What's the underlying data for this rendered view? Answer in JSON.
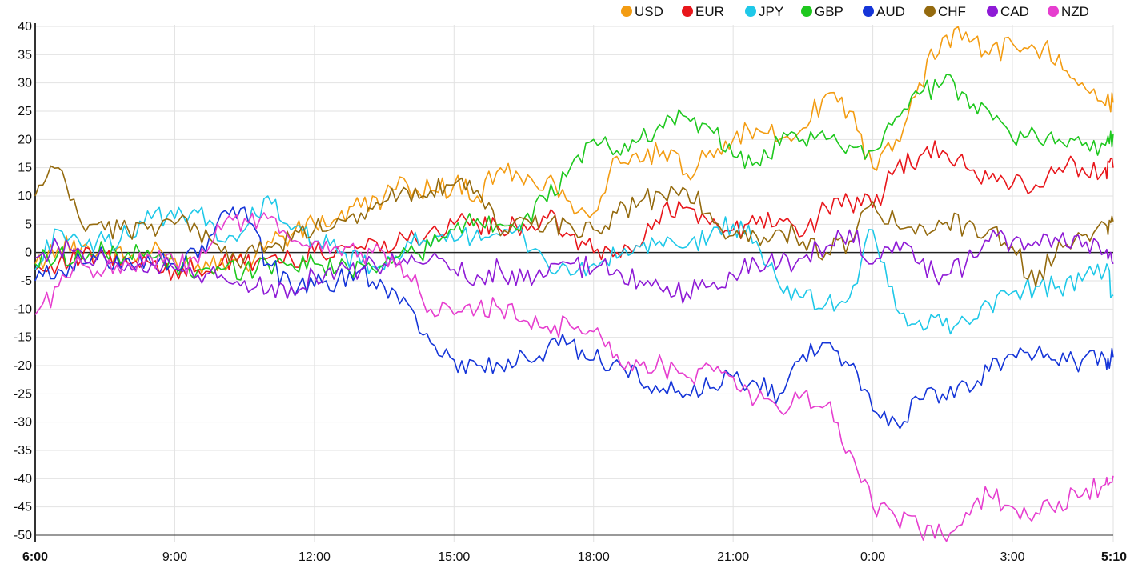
{
  "chart_data": {
    "type": "line",
    "ylim": [
      -50,
      40
    ],
    "yticks": [
      40,
      35,
      30,
      25,
      20,
      15,
      10,
      5,
      0,
      -5,
      -10,
      -15,
      -20,
      -25,
      -30,
      -35,
      -40,
      -45,
      -50
    ],
    "xticks": [
      {
        "label": "6:00",
        "hour": 0,
        "bold": true
      },
      {
        "label": "9:00",
        "hour": 3,
        "bold": false
      },
      {
        "label": "12:00",
        "hour": 6,
        "bold": false
      },
      {
        "label": "15:00",
        "hour": 9,
        "bold": false
      },
      {
        "label": "18:00",
        "hour": 12,
        "bold": false
      },
      {
        "label": "21:00",
        "hour": 15,
        "bold": false
      },
      {
        "label": "0:00",
        "hour": 18,
        "bold": false
      },
      {
        "label": "3:00",
        "hour": 21,
        "bold": false
      },
      {
        "label": "5:10",
        "hour": 23.1667,
        "bold": true
      }
    ],
    "xrange": [
      0,
      23.1667
    ],
    "grid": true,
    "legend": "top-right",
    "x_hours": [
      0,
      0.5,
      1,
      1.5,
      2,
      2.5,
      3,
      3.5,
      4,
      4.5,
      5,
      5.5,
      6,
      6.5,
      7,
      7.5,
      8,
      8.5,
      9,
      9.5,
      10,
      10.5,
      11,
      11.5,
      12,
      12.5,
      13,
      13.5,
      14,
      14.5,
      15,
      15.5,
      16,
      16.5,
      17,
      17.5,
      18,
      18.5,
      19,
      19.5,
      20,
      20.5,
      21,
      21.5,
      22,
      22.5,
      23,
      23.1667
    ],
    "series": [
      {
        "name": "USD",
        "color": "#f39c12",
        "values": [
          -2,
          1,
          1,
          0,
          -1,
          0,
          -1,
          -2,
          -1,
          -2,
          2,
          3,
          5,
          6,
          8,
          10,
          12,
          11,
          12,
          10,
          15,
          12,
          13,
          9,
          7,
          17,
          16,
          18,
          14,
          18,
          20,
          22,
          20,
          22,
          28,
          25,
          15,
          20,
          30,
          38,
          39,
          35,
          37,
          36,
          35,
          30,
          26,
          26.5
        ]
      },
      {
        "name": "EUR",
        "color": "#e8161b",
        "values": [
          -3,
          -2,
          -1,
          -1,
          -2,
          -2,
          -3,
          -3,
          -2,
          -2,
          -1,
          -1,
          0,
          1,
          1,
          2,
          2,
          4,
          5,
          5,
          4,
          5,
          6,
          3,
          0,
          0,
          1,
          8,
          8,
          5,
          4,
          5,
          6,
          3,
          8,
          9,
          8,
          15,
          17,
          18,
          15,
          13,
          12,
          12,
          15,
          15,
          15,
          15
        ]
      },
      {
        "name": "JPY",
        "color": "#1ec8e8",
        "values": [
          -3,
          4,
          1,
          2,
          3,
          6,
          6,
          7,
          2,
          4,
          10,
          4,
          2,
          0,
          -2,
          -3,
          2,
          1,
          2,
          4,
          3,
          3,
          -2,
          -4,
          -2,
          -1,
          1,
          1,
          1,
          3,
          5,
          2,
          -6,
          -8,
          -9,
          -8,
          4,
          -10,
          -12,
          -13,
          -12,
          -9,
          -7,
          -6,
          -6,
          -5,
          -3,
          -7.5
        ]
      },
      {
        "name": "GBP",
        "color": "#1ec81e",
        "values": [
          -2,
          0,
          -1,
          0,
          0,
          -1,
          -2,
          -3,
          -3,
          -3,
          -2,
          -2,
          -2,
          -3,
          -2,
          -2,
          0,
          1,
          4,
          6,
          5,
          6,
          9,
          15,
          20,
          18,
          20,
          22,
          24,
          22,
          17,
          16,
          19,
          20,
          20,
          19,
          18,
          24,
          28,
          30,
          28,
          25,
          20,
          21,
          20,
          19,
          19,
          21
        ]
      },
      {
        "name": "AUD",
        "color": "#1535d8",
        "values": [
          -5,
          -3,
          -2,
          -1,
          -1,
          -2,
          -2,
          -1,
          7,
          8,
          -2,
          -6,
          -6,
          -5,
          -3,
          -6,
          -9,
          -16,
          -19,
          -20,
          -20,
          -18,
          -17,
          -16,
          -19,
          -19,
          -23,
          -24,
          -25,
          -24,
          -22,
          -23,
          -25,
          -18,
          -16,
          -20,
          -28,
          -30,
          -26,
          -25,
          -23,
          -21,
          -18,
          -18,
          -20,
          -19,
          -19,
          -18.5
        ]
      },
      {
        "name": "CHF",
        "color": "#946a0e",
        "values": [
          10,
          15,
          5,
          4,
          4,
          5,
          5,
          4,
          0,
          -1,
          1,
          2,
          4,
          6,
          7,
          9,
          11,
          11,
          12,
          11,
          3,
          6,
          5,
          5,
          4,
          7,
          9,
          10,
          11,
          7,
          3,
          3,
          4,
          2,
          0,
          2,
          9,
          5,
          5,
          5,
          5,
          4,
          1,
          -6,
          2,
          3,
          5,
          5.5
        ]
      },
      {
        "name": "CAD",
        "color": "#8e1ad6",
        "values": [
          -1,
          1,
          0,
          -1,
          -2,
          -2,
          -3,
          -4,
          -4,
          -5,
          -7,
          -6,
          -4,
          -3,
          -3,
          -2,
          -2,
          -1,
          -3,
          -4,
          -3,
          -5,
          -4,
          -2,
          -3,
          -3,
          -5,
          -7,
          -7,
          -6,
          -4,
          -2,
          -2,
          -1,
          1,
          4,
          -2,
          2,
          -2,
          -4,
          -2,
          2,
          2,
          2,
          2,
          1,
          0,
          -2
        ]
      },
      {
        "name": "NZD",
        "color": "#e63ecf",
        "values": [
          -11,
          -6,
          -2,
          -3,
          -2,
          -1,
          -2,
          -2,
          4,
          6,
          6,
          2,
          2,
          1,
          0,
          0,
          -4,
          -10,
          -11,
          -10,
          -10,
          -12,
          -13,
          -13,
          -14,
          -18,
          -20,
          -20,
          -22,
          -20,
          -22,
          -26,
          -28,
          -25,
          -27,
          -35,
          -45,
          -47,
          -49,
          -50,
          -46,
          -43,
          -45,
          -46,
          -44,
          -43,
          -41,
          -39.5
        ]
      }
    ]
  }
}
